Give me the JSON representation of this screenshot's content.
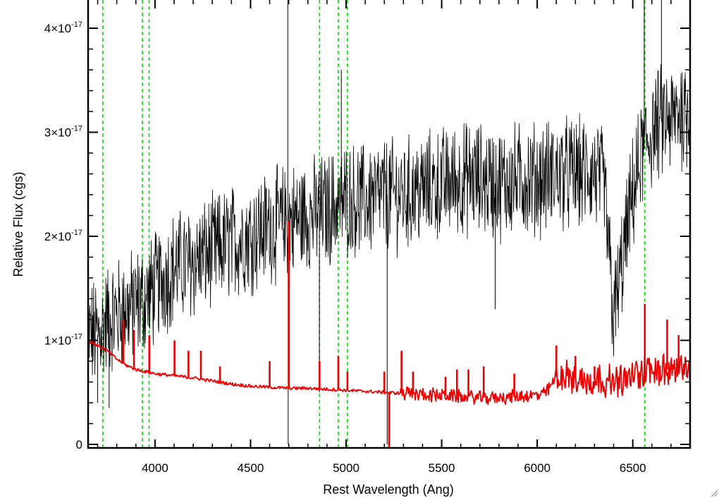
{
  "chart_data": {
    "type": "line",
    "title": "",
    "xlabel": "Rest Wavelength (Ang)",
    "ylabel": "Relative Flux (cgs)",
    "xlim": [
      3650,
      6800
    ],
    "ylim": [
      0,
      4.3e-17
    ],
    "x_ticks": [
      {
        "value": 4000,
        "label": "4000"
      },
      {
        "value": 4500,
        "label": "4500"
      },
      {
        "value": 5000,
        "label": "5000"
      },
      {
        "value": 5500,
        "label": "5500"
      },
      {
        "value": 6000,
        "label": "6000"
      },
      {
        "value": 6500,
        "label": "6500"
      }
    ],
    "y_ticks": [
      {
        "value": 0,
        "label": "0",
        "exponent": ""
      },
      {
        "value": 1e-17,
        "label": "1×10",
        "exponent": "-17"
      },
      {
        "value": 2e-17,
        "label": "2×10",
        "exponent": "-17"
      },
      {
        "value": 3e-17,
        "label": "3×10",
        "exponent": "-17"
      },
      {
        "value": 4e-17,
        "label": "4×10",
        "exponent": "-17"
      }
    ],
    "grid": false,
    "vertical_lines": {
      "color": "#00dd00",
      "style": "dashed",
      "x": [
        3727,
        3934,
        3969,
        4861,
        4959,
        5007,
        6563
      ]
    },
    "series": [
      {
        "color": "#000000",
        "style": "noisy",
        "x": [
          3650,
          3700,
          3750,
          3800,
          3850,
          3900,
          3950,
          4000,
          4100,
          4200,
          4300,
          4400,
          4500,
          4600,
          4700,
          4800,
          4900,
          5000,
          5100,
          5200,
          5300,
          5400,
          5500,
          5600,
          5700,
          5800,
          5900,
          6000,
          6100,
          6200,
          6300,
          6350,
          6400,
          6450,
          6500,
          6550,
          6600,
          6650,
          6700,
          6750,
          6800
        ],
        "y": [
          1.05e-17,
          1.05e-17,
          1.2e-17,
          1.25e-17,
          1.3e-17,
          1.35e-17,
          1.4e-17,
          1.5e-17,
          1.7e-17,
          1.75e-17,
          1.85e-17,
          1.95e-17,
          2e-17,
          2.1e-17,
          2.15e-17,
          2.2e-17,
          2.25e-17,
          2.35e-17,
          2.35e-17,
          2.4e-17,
          2.4e-17,
          2.45e-17,
          2.5e-17,
          2.55e-17,
          2.55e-17,
          2.5e-17,
          2.55e-17,
          2.55e-17,
          2.6e-17,
          2.6e-17,
          2.6e-17,
          2.5e-17,
          1.2e-17,
          1.8e-17,
          2.4e-17,
          2.8e-17,
          3e-17,
          3.1e-17,
          3.1e-17,
          3.2e-17,
          3.2e-17
        ],
        "noise": 2.2e-18,
        "spikes": [
          {
            "x": 3700,
            "y": 4e-18
          },
          {
            "x": 3760,
            "y": 3.5e-18
          },
          {
            "x": 4695,
            "y": 4.3e-17
          },
          {
            "x": 4697,
            "y": 0.0
          },
          {
            "x": 4860,
            "y": 5e-18
          },
          {
            "x": 4975,
            "y": 3.6e-17
          },
          {
            "x": 5215,
            "y": 0.0
          },
          {
            "x": 5780,
            "y": 1.3e-17
          },
          {
            "x": 6560,
            "y": 4.3e-17
          },
          {
            "x": 6650,
            "y": 4.3e-17
          }
        ]
      },
      {
        "color": "#ee0000",
        "style": "emission",
        "x": [
          3650,
          3700,
          3750,
          3800,
          3850,
          3900,
          3950,
          4000,
          4100,
          4200,
          4300,
          4400,
          4500,
          4600,
          4700,
          4800,
          4900,
          5000,
          5100,
          5200,
          5300,
          5400,
          5500,
          5600,
          5700,
          5800,
          5900,
          6000,
          6050,
          6100,
          6200,
          6300,
          6400,
          6500,
          6550,
          6600,
          6700,
          6800
        ],
        "y": [
          1e-17,
          9.5e-18,
          9e-18,
          8.2e-18,
          7.6e-18,
          7.2e-18,
          7e-18,
          6.8e-18,
          6.6e-18,
          6.4e-18,
          6.1e-18,
          5.8e-18,
          5.6e-18,
          5.5e-18,
          5.4e-18,
          5.4e-18,
          5.3e-18,
          5.2e-18,
          5.1e-18,
          5e-18,
          4.9e-18,
          4.8e-18,
          4.7e-18,
          4.6e-18,
          4.5e-18,
          4.5e-18,
          4.6e-18,
          4.7e-18,
          5e-18,
          6.5e-18,
          6.3e-18,
          6.2e-18,
          6e-18,
          6.5e-18,
          7e-18,
          7.2e-18,
          7.2e-18,
          7e-18
        ],
        "spikes": [
          {
            "x": 3730,
            "y": 9.5e-18
          },
          {
            "x": 3835,
            "y": 1.2e-17
          },
          {
            "x": 3890,
            "y": 1.1e-17
          },
          {
            "x": 3970,
            "y": 1.05e-17
          },
          {
            "x": 4102,
            "y": 1e-17
          },
          {
            "x": 4175,
            "y": 9e-18
          },
          {
            "x": 4240,
            "y": 9e-18
          },
          {
            "x": 4340,
            "y": 7.5e-18
          },
          {
            "x": 4600,
            "y": 8e-18
          },
          {
            "x": 4700,
            "y": 2.15e-17
          },
          {
            "x": 4700,
            "y": 5.5e-18
          },
          {
            "x": 4861,
            "y": 8e-18
          },
          {
            "x": 4959,
            "y": 8.5e-18
          },
          {
            "x": 5007,
            "y": 7e-18
          },
          {
            "x": 5200,
            "y": 7e-18
          },
          {
            "x": 5225,
            "y": -2e-18
          },
          {
            "x": 5290,
            "y": 9e-18
          },
          {
            "x": 5350,
            "y": 7e-18
          },
          {
            "x": 5520,
            "y": 6.5e-18
          },
          {
            "x": 5580,
            "y": 7.2e-18
          },
          {
            "x": 5640,
            "y": 7.2e-18
          },
          {
            "x": 5720,
            "y": 7.5e-18
          },
          {
            "x": 5880,
            "y": 6.8e-18
          },
          {
            "x": 6100,
            "y": 9.5e-18
          },
          {
            "x": 6200,
            "y": 8.5e-18
          },
          {
            "x": 6300,
            "y": 7.5e-18
          },
          {
            "x": 6563,
            "y": 1.35e-17
          },
          {
            "x": 6680,
            "y": 1.2e-17
          },
          {
            "x": 6740,
            "y": 1.05e-17
          }
        ]
      }
    ]
  }
}
